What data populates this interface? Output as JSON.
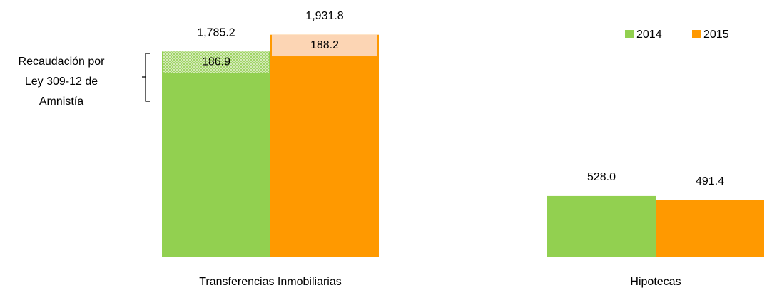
{
  "chart_data": {
    "type": "bar",
    "categories": [
      "Transferencias Inmobiliarias",
      "Hipotecas"
    ],
    "series": [
      {
        "name": "2014",
        "color": "#92d050",
        "values": [
          1785.2,
          528.0
        ],
        "value_labels": [
          "1,785.2",
          "528.0"
        ]
      },
      {
        "name": "2015",
        "color": "#ff9900",
        "values": [
          1931.8,
          491.4
        ],
        "value_labels": [
          "1,931.8",
          "491.4"
        ]
      }
    ],
    "amnesty": {
      "annotation": [
        "Recaudación por",
        "Ley 309-12 de",
        "Amnistía"
      ],
      "series": [
        {
          "color": "#e4efd2",
          "values": [
            186.9,
            null
          ]
        },
        {
          "color": "#fcd5b4",
          "values": [
            188.2,
            null
          ]
        }
      ]
    },
    "ylim": [
      0,
      2000
    ],
    "legend": "upper right"
  }
}
